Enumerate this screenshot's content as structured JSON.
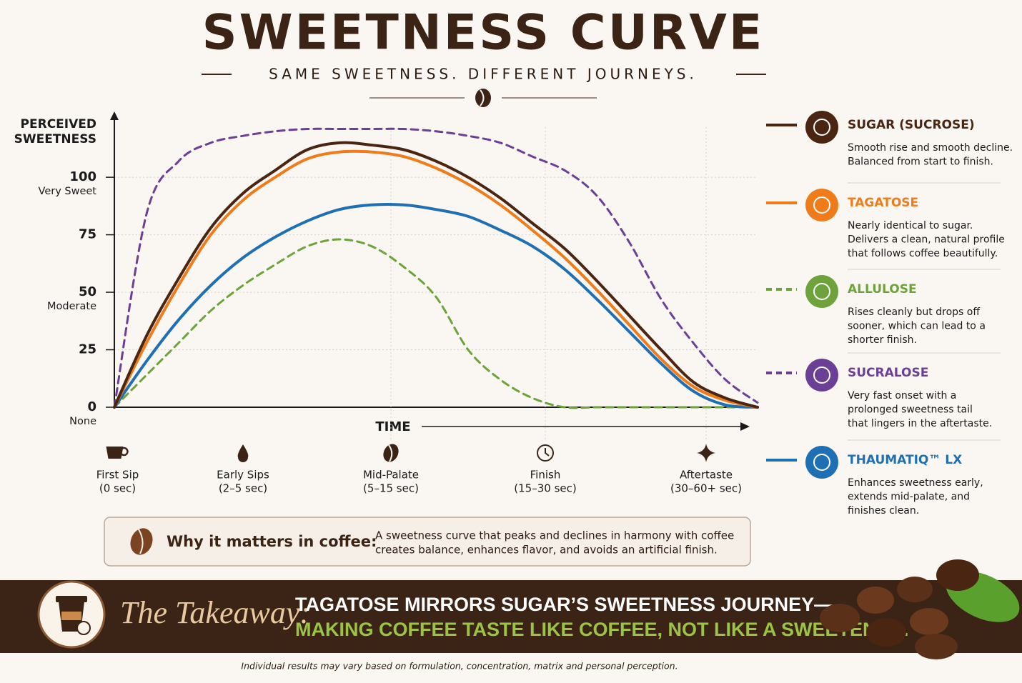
{
  "chart_data": {
    "type": "line",
    "title": "SWEETNESS CURVE",
    "subtitle": "SAME SWEETNESS. DIFFERENT JOURNEYS.",
    "y_label": [
      "PERCEIVED",
      "SWEETNESS"
    ],
    "x_label": "TIME",
    "ylim": [
      0,
      128
    ],
    "yticks": [
      0,
      25,
      50,
      75,
      100
    ],
    "y_annotations": [
      {
        "value": 100,
        "text": "Very Sweet"
      },
      {
        "value": 50,
        "text": "Moderate"
      },
      {
        "value": 0,
        "text": "None"
      }
    ],
    "grid": true,
    "xlim": [
      0,
      100
    ],
    "time_points": [
      {
        "value": 0.5,
        "label": "First Sip",
        "range": "(0 sec)"
      },
      {
        "value": 20,
        "label": "Early Sips",
        "range": "(2–5 sec)"
      },
      {
        "value": 43,
        "label": "Mid-Palate",
        "range": "(5–15 sec)"
      },
      {
        "value": 67,
        "label": "Finish",
        "range": "(15–30 sec)"
      },
      {
        "value": 92,
        "label": "Aftertaste",
        "range": "(30–60+ sec)"
      }
    ],
    "x": [
      0,
      5,
      10,
      15,
      20,
      25,
      30,
      35,
      40,
      45,
      50,
      55,
      60,
      65,
      70,
      75,
      80,
      85,
      90,
      95,
      100
    ],
    "series": [
      {
        "name": "SUGAR (SUCROSE)",
        "color": "#4a2512",
        "dashed": false,
        "description": [
          "Smooth rise and smooth decline.",
          "Balanced from start to finish."
        ],
        "values": [
          0,
          31,
          56,
          78,
          93,
          103,
          112,
          115,
          114,
          112,
          107,
          100,
          91,
          80,
          69,
          55,
          40,
          25,
          11,
          4,
          0
        ]
      },
      {
        "name": "TAGATOSE",
        "color": "#f07b1a",
        "dashed": false,
        "description": [
          "Nearly identical to sugar.",
          "Delivers a clean, natural profile",
          "that follows coffee beautifully."
        ],
        "values": [
          0,
          28,
          53,
          75,
          90,
          100,
          108,
          111,
          111,
          109,
          104,
          97,
          88,
          77,
          65,
          51,
          36,
          21,
          9,
          3,
          0
        ]
      },
      {
        "name": "ALLULOSE",
        "color": "#6da33a",
        "dashed": true,
        "description": [
          "Rises cleanly but drops off",
          "sooner, which can lead to a",
          "shorter finish."
        ],
        "values": [
          0,
          14,
          28,
          42,
          53,
          62,
          70,
          73,
          70,
          61,
          48,
          25,
          12,
          4,
          0,
          0,
          0,
          0,
          0,
          0,
          0
        ]
      },
      {
        "name": "SUCRALOSE",
        "color": "#6b3f95",
        "dashed": true,
        "description": [
          "Very fast onset with a",
          "prolonged sweetness tail",
          "that lingers in the aftertaste."
        ],
        "values": [
          0,
          84,
          107,
          115,
          118,
          120,
          121,
          121,
          121,
          121,
          120,
          118,
          115,
          109,
          103,
          92,
          72,
          47,
          28,
          12,
          2
        ]
      },
      {
        "name": "THAUMATIQ™ LX",
        "color": "#1f6fb5",
        "dashed": false,
        "description": [
          "Enhances sweetness early,",
          "extends mid-palate, and",
          "finishes clean."
        ],
        "values": [
          0,
          20,
          38,
          53,
          65,
          74,
          81,
          86,
          88,
          88,
          86,
          83,
          77,
          70,
          60,
          47,
          33,
          19,
          7,
          1,
          0
        ]
      }
    ]
  },
  "why_it_matters": {
    "heading": "Why it matters in coffee:",
    "text": [
      "A sweetness curve that peaks and declines in harmony with coffee",
      "creates balance, enhances flavor, and avoids an artificial finish."
    ]
  },
  "takeaway": {
    "label": "The Takeaway:",
    "line1": "TAGATOSE MIRRORS SUGAR’S SWEETNESS JOURNEY—",
    "line2": "MAKING COFFEE TASTE LIKE COFFEE, NOT LIKE A SWEETENER."
  },
  "footnote": "Individual results may vary based on formulation, concentration, matrix and personal perception."
}
